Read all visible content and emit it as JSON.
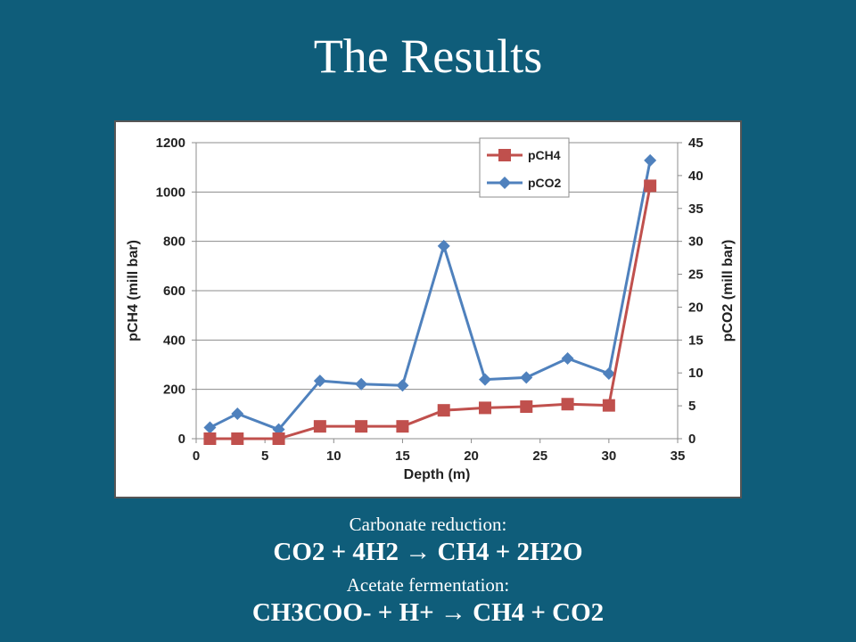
{
  "slide": {
    "title": "The Results",
    "equations": [
      {
        "caption": "Carbonate reduction:",
        "formula": "CO2 + 4H2 → CH4 + 2H2O"
      },
      {
        "caption": "Acetate fermentation:",
        "formula": "CH3COO- + H+ → CH4 + CO2"
      }
    ]
  },
  "chart_data": {
    "type": "line",
    "xlabel": "Depth (m)",
    "ylabel": "pCH4 (mill bar)",
    "y2label": "pCO2 (mill bar)",
    "xlim": [
      0,
      35
    ],
    "xticks": [
      0,
      5,
      10,
      15,
      20,
      25,
      30,
      35
    ],
    "ylim": [
      0,
      1200
    ],
    "yticks": [
      0,
      200,
      400,
      600,
      800,
      1000,
      1200
    ],
    "y2lim": [
      0,
      45
    ],
    "y2ticks": [
      0,
      5,
      10,
      15,
      20,
      25,
      30,
      35,
      40,
      45
    ],
    "grid": true,
    "legend_position": "top-right",
    "series": [
      {
        "name": "pCH4",
        "axis": "left",
        "color": "#c0504d",
        "marker": "square",
        "x": [
          1,
          3,
          6,
          9,
          12,
          15,
          18,
          21,
          24,
          27,
          30,
          33
        ],
        "y": [
          0,
          0,
          0,
          50,
          50,
          50,
          115,
          125,
          130,
          140,
          135,
          1025
        ]
      },
      {
        "name": "pCO2",
        "axis": "right",
        "color": "#4f81bd",
        "marker": "diamond",
        "x": [
          1,
          3,
          6,
          9,
          12,
          15,
          18,
          21,
          24,
          27,
          30,
          33
        ],
        "y": [
          1.7,
          3.8,
          1.4,
          8.8,
          8.3,
          8.1,
          29.3,
          9.0,
          9.3,
          12.2,
          9.9,
          42.3
        ]
      }
    ]
  }
}
